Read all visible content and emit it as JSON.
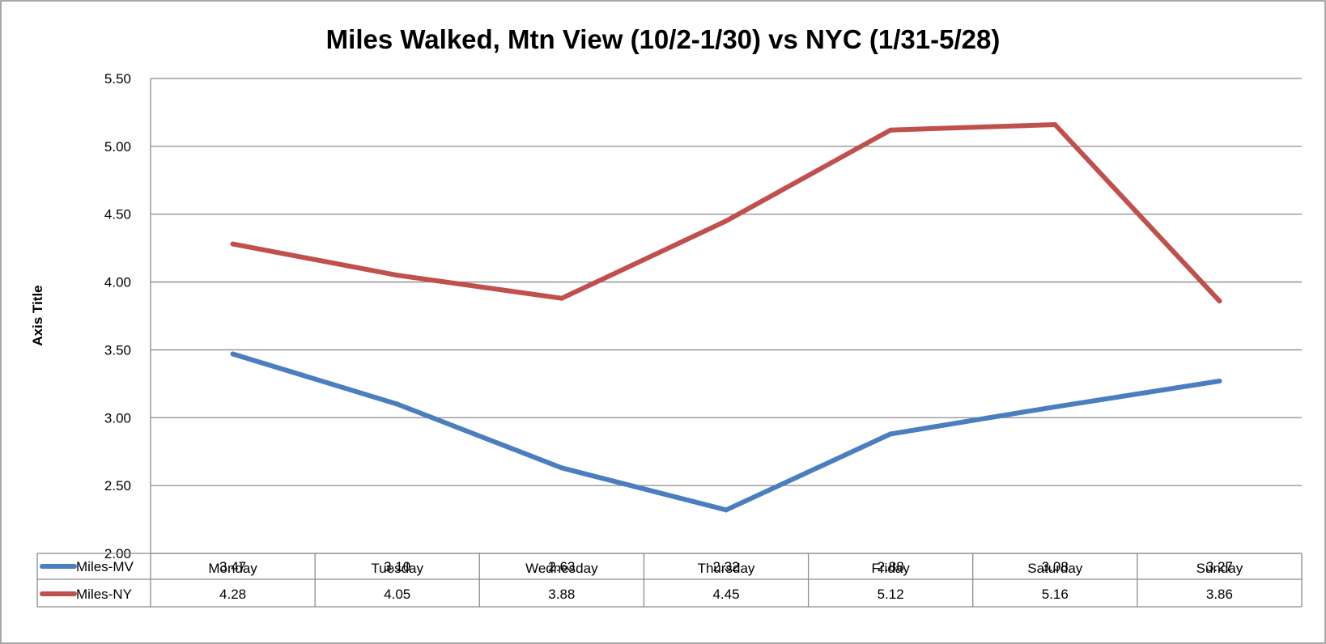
{
  "chart_data": {
    "type": "line",
    "title": "Miles Walked, Mtn View (10/2-1/30) vs NYC (1/31-5/28)",
    "ylabel": "Axis Title",
    "xlabel": "",
    "categories": [
      "Monday",
      "Tuesday",
      "Wednesday",
      "Thursday",
      "Friday",
      "Saturday",
      "Sunday"
    ],
    "ylim": [
      2.0,
      5.5
    ],
    "yticks": [
      "2.00",
      "2.50",
      "3.00",
      "3.50",
      "4.00",
      "4.50",
      "5.00",
      "5.50"
    ],
    "grid": true,
    "legend": "data-table",
    "series": [
      {
        "name": "Miles-MV",
        "color": "#4a7ebf",
        "values": [
          3.47,
          3.1,
          2.63,
          2.32,
          2.88,
          3.08,
          3.27
        ],
        "labels": [
          "3.47",
          "3.10",
          "2.63",
          "2.32",
          "2.88",
          "3.08",
          "3.27"
        ]
      },
      {
        "name": "Miles-NY",
        "color": "#c0504d",
        "values": [
          4.28,
          4.05,
          3.88,
          4.45,
          5.12,
          5.16,
          3.86
        ],
        "labels": [
          "4.28",
          "4.05",
          "3.88",
          "4.45",
          "5.12",
          "5.16",
          "3.86"
        ]
      }
    ]
  }
}
